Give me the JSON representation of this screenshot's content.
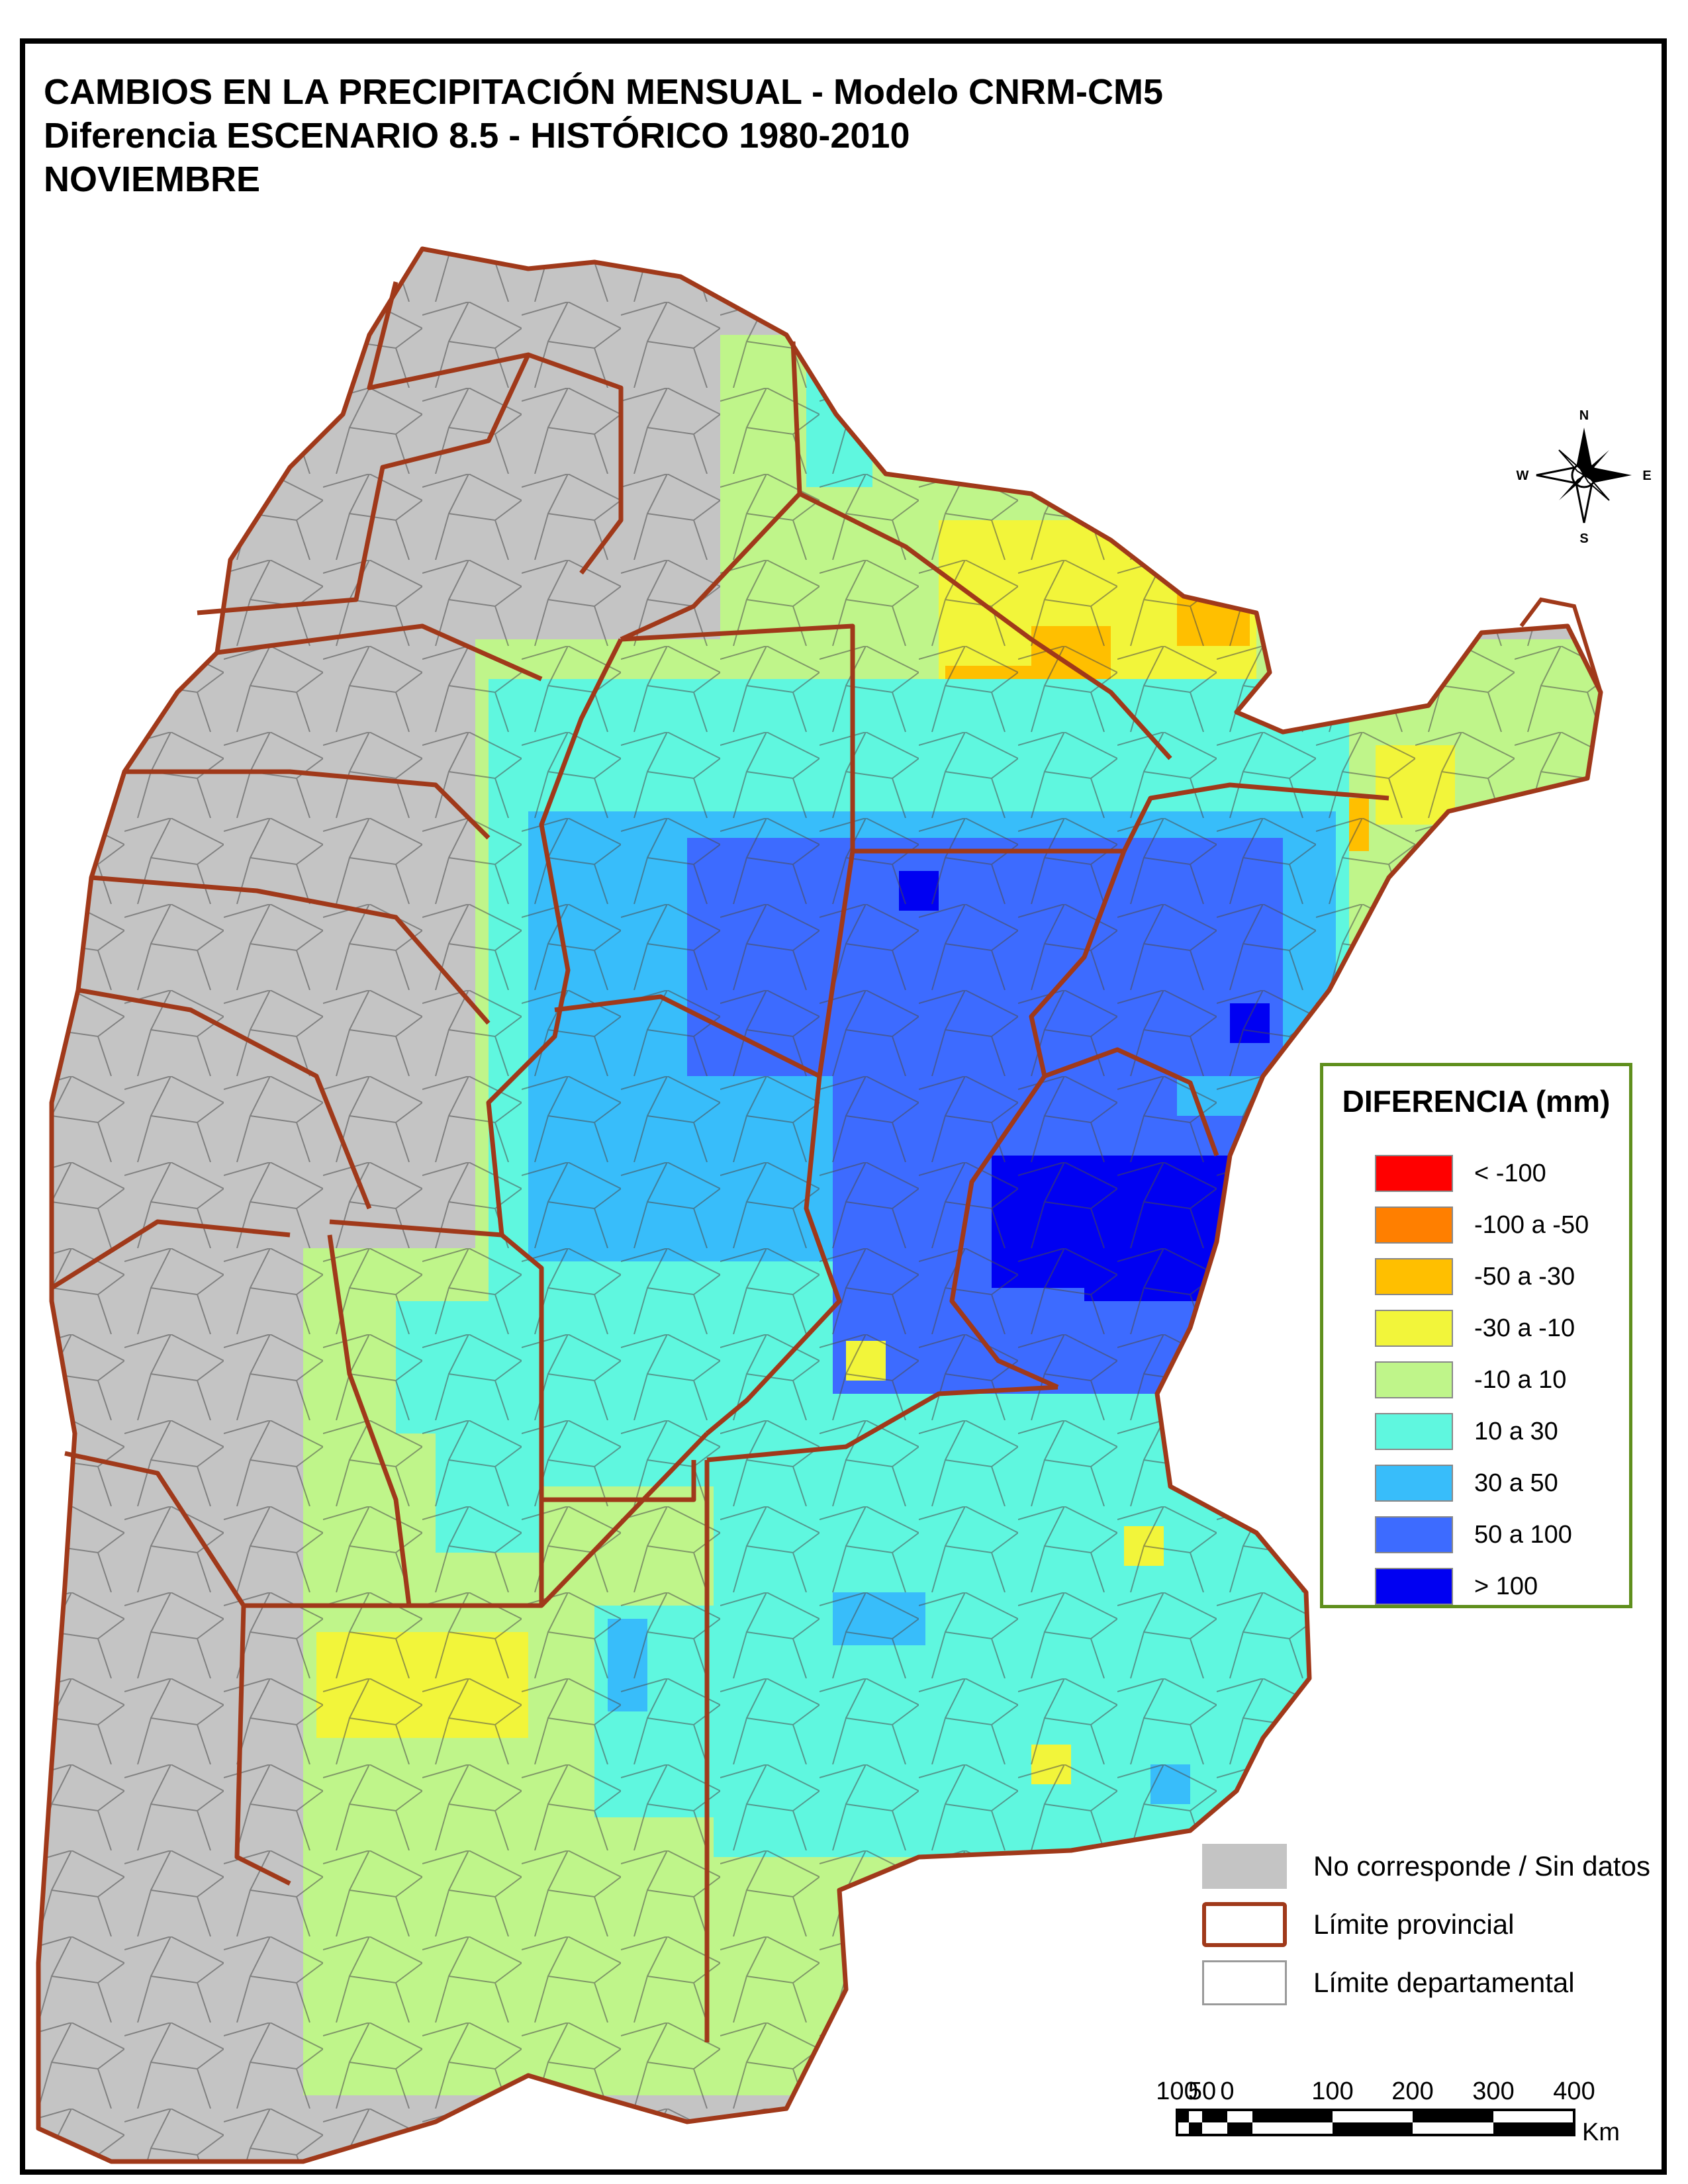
{
  "title": {
    "line1": "CAMBIOS EN LA PRECIPITACIÓN MENSUAL - Modelo CNRM-CM5",
    "line2": "Diferencia ESCENARIO 8.5 - HISTÓRICO 1980-2010",
    "line3": "NOVIEMBRE"
  },
  "compass": {
    "n": "N",
    "s": "S",
    "e": "E",
    "w": "W"
  },
  "legend": {
    "title": "DIFERENCIA (mm)",
    "classes": [
      {
        "label": "< -100",
        "color": "#ff0000"
      },
      {
        "label": "-100 a -50",
        "color": "#ff7f00"
      },
      {
        "label": "-50 a -30",
        "color": "#ffbf00"
      },
      {
        "label": "-30 a -10",
        "color": "#f2f53a"
      },
      {
        "label": "-10 a 10",
        "color": "#bff58a"
      },
      {
        "label": "10 a 30",
        "color": "#5ff7df"
      },
      {
        "label": "30 a 50",
        "color": "#38bdfa"
      },
      {
        "label": "50 a 100",
        "color": "#3d6bff"
      },
      {
        "label": "> 100",
        "color": "#0000f2"
      }
    ]
  },
  "references": [
    {
      "label": "No corresponde / Sin datos",
      "kind": "nodata",
      "color": "#c4c4c4"
    },
    {
      "label": "Límite provincial",
      "kind": "province",
      "color": "#a0391a"
    },
    {
      "label": "Límite departamental",
      "kind": "department",
      "color": "#9a9a9a"
    }
  ],
  "scale": {
    "ticks": [
      "100",
      "50",
      "0",
      "100",
      "200",
      "300",
      "400"
    ],
    "unit": "Km"
  },
  "colors": {
    "province_border": "#a0391a",
    "department_line": "#5a5a5a",
    "no_data": "#c4c4c4"
  }
}
